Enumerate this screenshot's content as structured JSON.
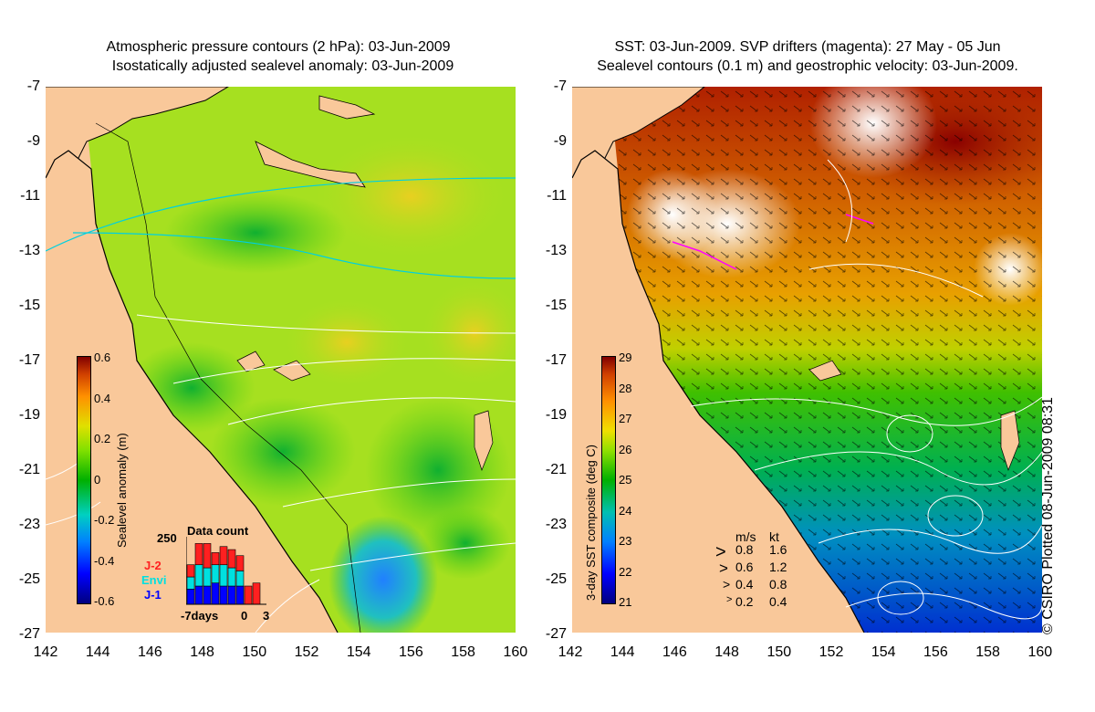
{
  "left": {
    "title_line1": "Atmospheric pressure contours (2 hPa): 03-Jun-2009",
    "title_line2": "Isostatically adjusted sealevel anomaly: 03-Jun-2009",
    "colorbar_title": "Sealevel anomaly (m)",
    "colorbar_ticks": [
      "0.6",
      "0.4",
      "0.2",
      "0",
      "-0.2",
      "-0.4",
      "-0.6"
    ],
    "data_count": {
      "title": "Data count",
      "ymax": "250",
      "legend": [
        {
          "name": "J-2",
          "color": "#ff2020"
        },
        {
          "name": "Envi",
          "color": "#00e0e0"
        },
        {
          "name": "J-1",
          "color": "#0000ff"
        }
      ],
      "xlabels": [
        "-7days",
        "0",
        "3"
      ],
      "bars": [
        {
          "j1": 0.25,
          "envi": 0.2,
          "j2": 0.2
        },
        {
          "j1": 0.3,
          "envi": 0.35,
          "j2": 0.35
        },
        {
          "j1": 0.3,
          "envi": 0.3,
          "j2": 0.4
        },
        {
          "j1": 0.35,
          "envi": 0.3,
          "j2": 0.2
        },
        {
          "j1": 0.3,
          "envi": 0.35,
          "j2": 0.3
        },
        {
          "j1": 0.3,
          "envi": 0.3,
          "j2": 0.3
        },
        {
          "j1": 0.3,
          "envi": 0.25,
          "j2": 0.25
        },
        {
          "j1": 0,
          "envi": 0,
          "j2": 0.3
        },
        {
          "j1": 0,
          "envi": 0,
          "j2": 0.35
        }
      ]
    }
  },
  "right": {
    "title_line1": "SST: 03-Jun-2009. SVP drifters (magenta): 27 May - 05 Jun",
    "title_line2": "Sealevel contours (0.1 m) and geostrophic velocity: 03-Jun-2009.",
    "colorbar_title": "3-day SST composite (deg C)",
    "colorbar_ticks": [
      "29",
      "28",
      "27",
      "26",
      "25",
      "24",
      "23",
      "22",
      "21"
    ],
    "velocity_legend": {
      "header_ms": "m/s",
      "header_kt": "kt",
      "rows": [
        {
          "ms": "0.8",
          "kt": "1.6"
        },
        {
          "ms": "0.6",
          "kt": "1.2"
        },
        {
          "ms": "0.4",
          "kt": "0.8"
        },
        {
          "ms": "0.2",
          "kt": "0.4"
        }
      ]
    }
  },
  "axes": {
    "y_ticks": [
      "-7",
      "-9",
      "-11",
      "-13",
      "-15",
      "-17",
      "-19",
      "-21",
      "-23",
      "-25",
      "-27"
    ],
    "x_ticks": [
      "142",
      "144",
      "146",
      "148",
      "150",
      "152",
      "154",
      "156",
      "158",
      "160"
    ]
  },
  "credit": "© CSIRO Plotted 08-Jun-2009 08:31",
  "colors": {
    "land": "#f9c89a",
    "coast": "#000000",
    "contour": "#ffffff",
    "pressure": "#00d0e0"
  }
}
